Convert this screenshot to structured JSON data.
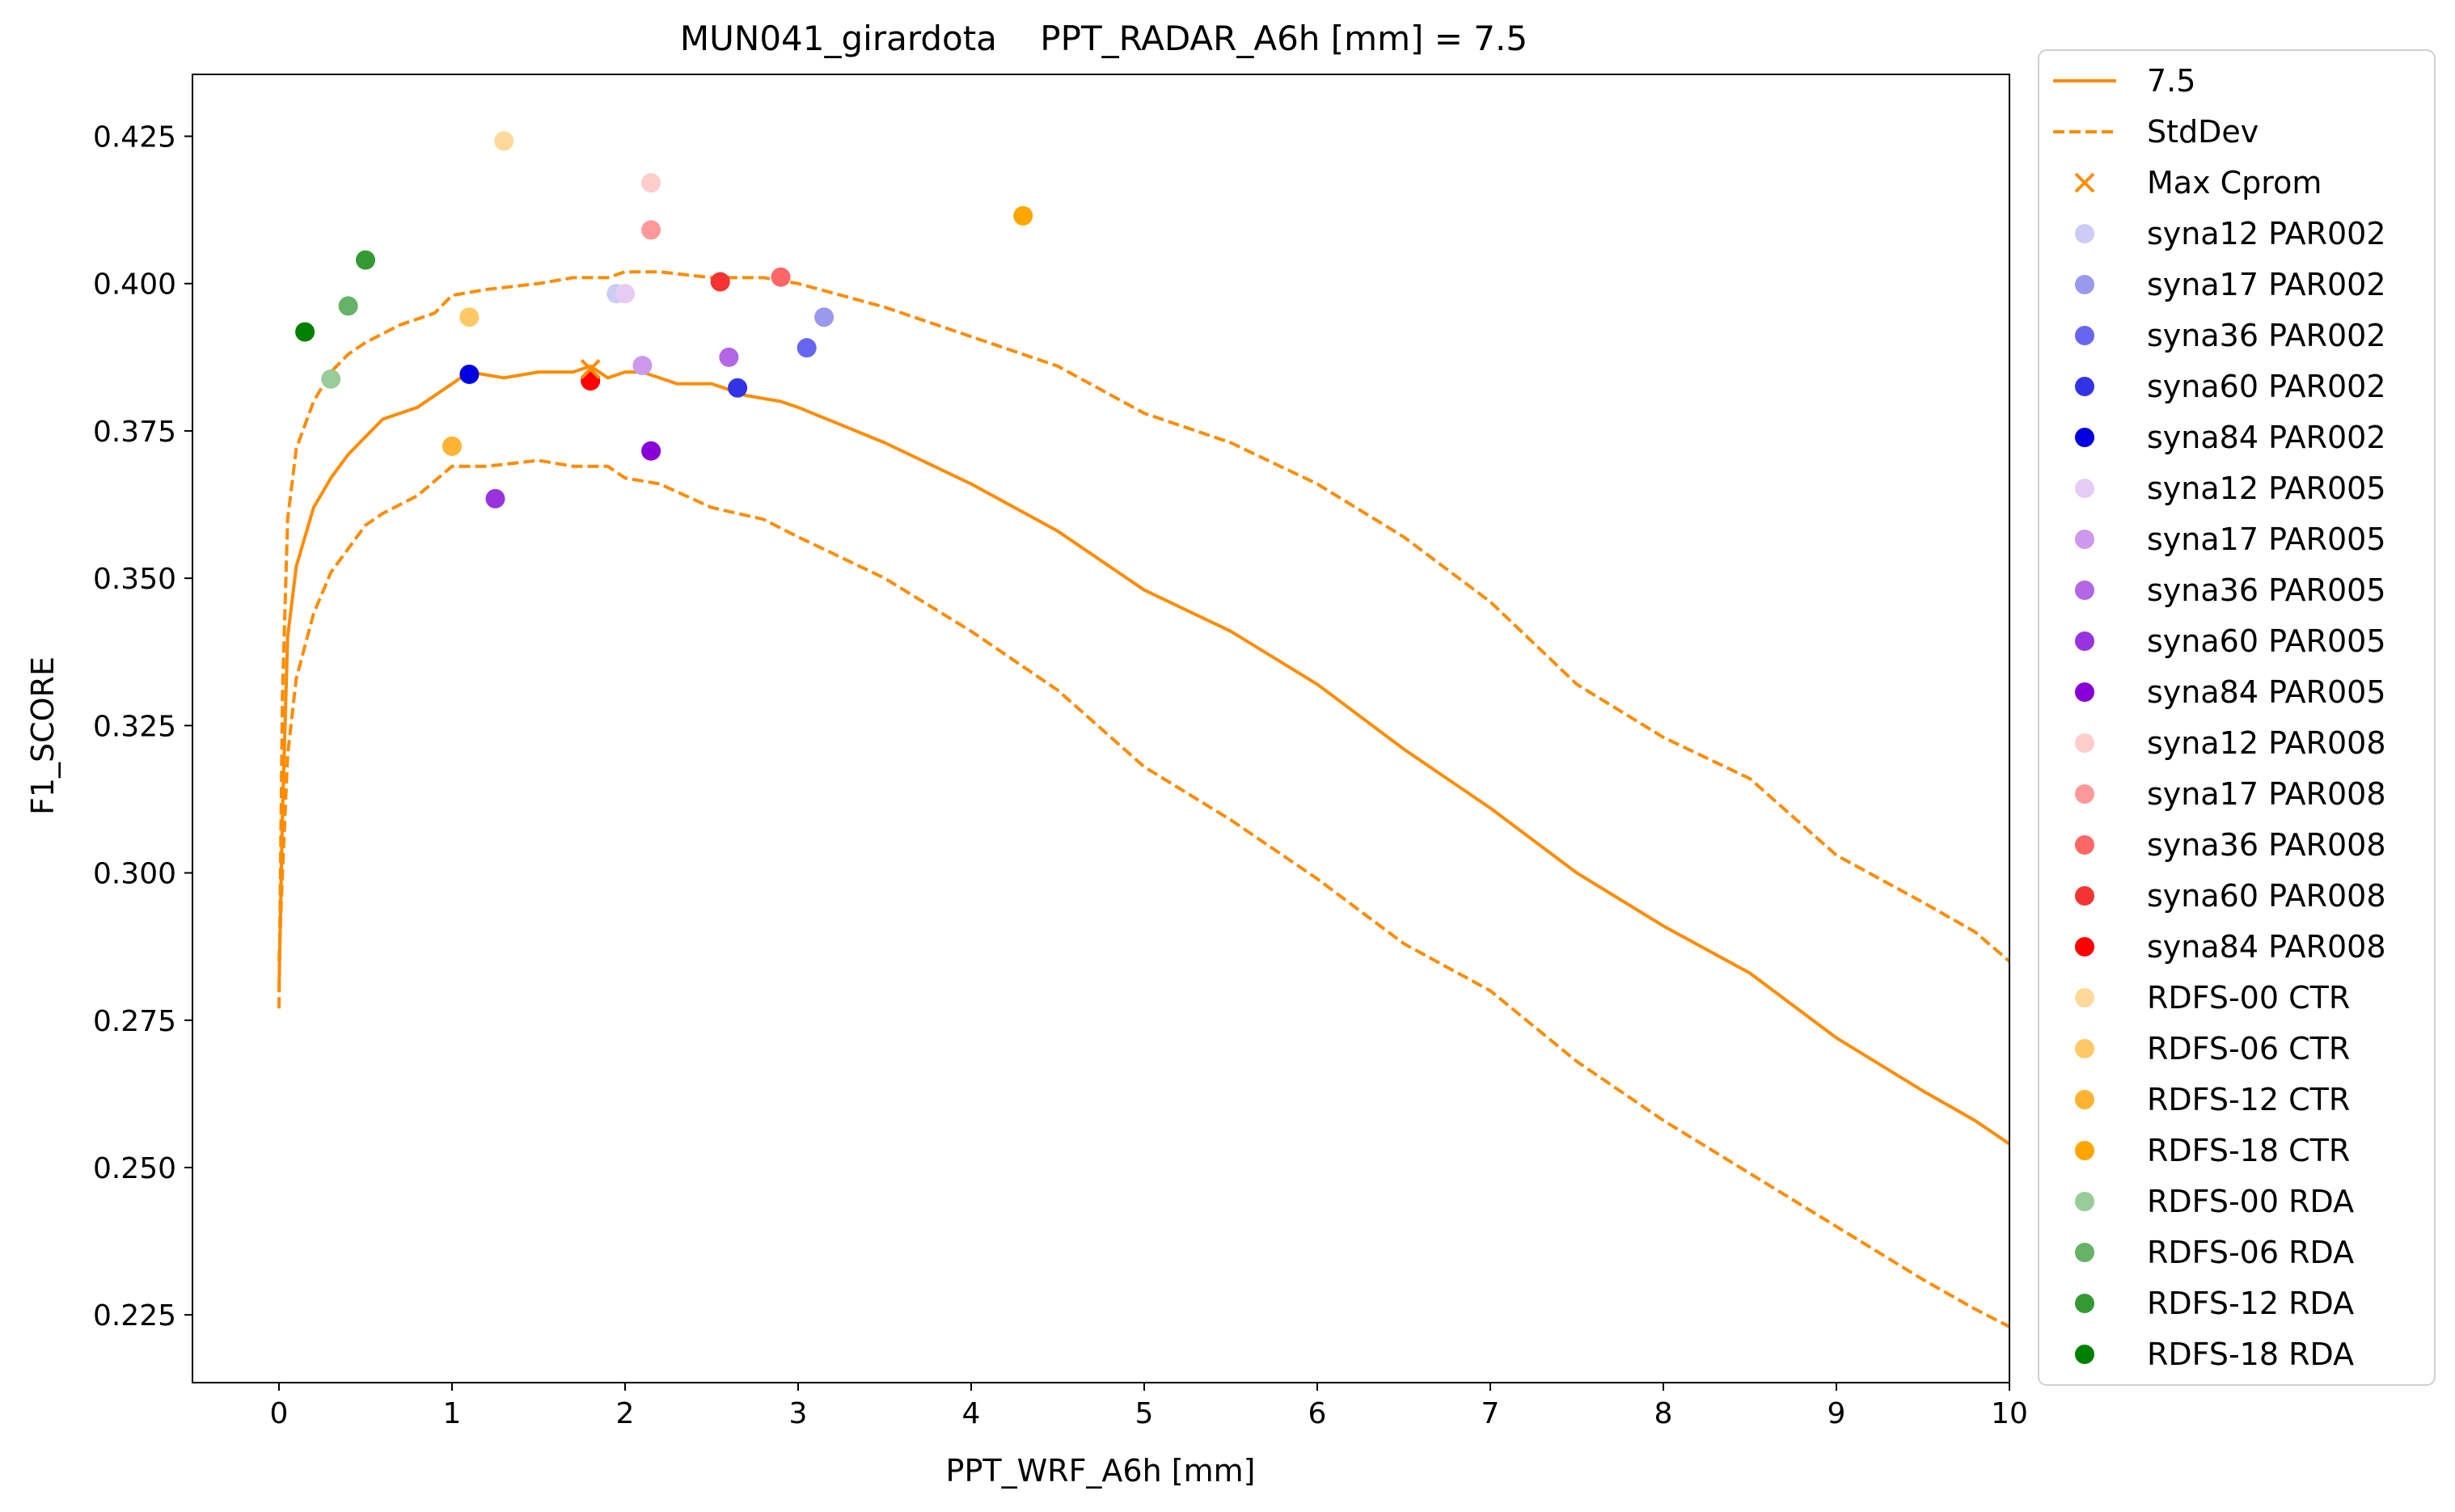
{
  "chart_data": {
    "type": "line",
    "title": "MUN041_girardota    PPT_RADAR_A6h [mm] = 7.5",
    "xlabel": "PPT_WRF_A6h [mm]",
    "ylabel": "F1_SCORE",
    "xlim": [
      -0.5,
      10
    ],
    "ylim": [
      0.2135,
      0.4355
    ],
    "xticks": [
      0,
      1,
      2,
      3,
      4,
      5,
      6,
      7,
      8,
      9,
      10
    ],
    "yticks": [
      0.225,
      0.25,
      0.275,
      0.3,
      0.325,
      0.35,
      0.375,
      0.4,
      0.425
    ],
    "ytick_labels": [
      "0.225",
      "0.250",
      "0.275",
      "0.300",
      "0.325",
      "0.350",
      "0.375",
      "0.400",
      "0.425"
    ],
    "grid": false,
    "legend_position": "outside-right",
    "series": [
      {
        "name": "7.5",
        "style": "solid",
        "color": "#ff8c00",
        "points": [
          [
            0.0,
            0.28
          ],
          [
            0.02,
            0.31
          ],
          [
            0.05,
            0.34
          ],
          [
            0.1,
            0.352
          ],
          [
            0.2,
            0.362
          ],
          [
            0.3,
            0.367
          ],
          [
            0.4,
            0.371
          ],
          [
            0.5,
            0.374
          ],
          [
            0.6,
            0.377
          ],
          [
            0.8,
            0.379
          ],
          [
            1.0,
            0.383
          ],
          [
            1.1,
            0.385
          ],
          [
            1.3,
            0.384
          ],
          [
            1.5,
            0.385
          ],
          [
            1.7,
            0.385
          ],
          [
            1.8,
            0.386
          ],
          [
            1.9,
            0.384
          ],
          [
            2.0,
            0.385
          ],
          [
            2.1,
            0.385
          ],
          [
            2.3,
            0.383
          ],
          [
            2.5,
            0.383
          ],
          [
            2.7,
            0.381
          ],
          [
            2.9,
            0.38
          ],
          [
            3.0,
            0.379
          ],
          [
            3.5,
            0.373
          ],
          [
            4.0,
            0.366
          ],
          [
            4.5,
            0.358
          ],
          [
            5.0,
            0.348
          ],
          [
            5.5,
            0.341
          ],
          [
            6.0,
            0.332
          ],
          [
            6.5,
            0.321
          ],
          [
            7.0,
            0.311
          ],
          [
            7.5,
            0.3
          ],
          [
            8.0,
            0.291
          ],
          [
            8.5,
            0.283
          ],
          [
            9.0,
            0.272
          ],
          [
            9.5,
            0.263
          ],
          [
            9.8,
            0.258
          ],
          [
            10.0,
            0.254
          ]
        ]
      },
      {
        "name": "StdDev",
        "style": "dashed",
        "color": "#ff8c00",
        "points": [
          [
            0.0,
            0.277
          ],
          [
            0.02,
            0.33
          ],
          [
            0.05,
            0.36
          ],
          [
            0.1,
            0.372
          ],
          [
            0.2,
            0.38
          ],
          [
            0.3,
            0.385
          ],
          [
            0.4,
            0.388
          ],
          [
            0.5,
            0.39
          ],
          [
            0.7,
            0.393
          ],
          [
            0.9,
            0.395
          ],
          [
            1.0,
            0.398
          ],
          [
            1.2,
            0.399
          ],
          [
            1.5,
            0.4
          ],
          [
            1.7,
            0.401
          ],
          [
            1.9,
            0.401
          ],
          [
            2.0,
            0.402
          ],
          [
            2.2,
            0.402
          ],
          [
            2.5,
            0.401
          ],
          [
            2.8,
            0.401
          ],
          [
            3.0,
            0.4
          ],
          [
            3.5,
            0.396
          ],
          [
            4.0,
            0.391
          ],
          [
            4.5,
            0.386
          ],
          [
            5.0,
            0.378
          ],
          [
            5.5,
            0.373
          ],
          [
            6.0,
            0.366
          ],
          [
            6.5,
            0.357
          ],
          [
            7.0,
            0.346
          ],
          [
            7.5,
            0.332
          ],
          [
            8.0,
            0.323
          ],
          [
            8.5,
            0.316
          ],
          [
            9.0,
            0.303
          ],
          [
            9.5,
            0.295
          ],
          [
            9.8,
            0.29
          ],
          [
            10.0,
            0.285
          ]
        ]
      },
      {
        "name": "StdDev",
        "style": "dashed",
        "color": "#ff8c00",
        "points": [
          [
            0.0,
            0.285
          ],
          [
            0.02,
            0.3
          ],
          [
            0.05,
            0.32
          ],
          [
            0.1,
            0.333
          ],
          [
            0.2,
            0.344
          ],
          [
            0.3,
            0.351
          ],
          [
            0.4,
            0.355
          ],
          [
            0.5,
            0.359
          ],
          [
            0.6,
            0.361
          ],
          [
            0.8,
            0.364
          ],
          [
            1.0,
            0.369
          ],
          [
            1.2,
            0.369
          ],
          [
            1.5,
            0.37
          ],
          [
            1.7,
            0.369
          ],
          [
            1.9,
            0.369
          ],
          [
            2.0,
            0.367
          ],
          [
            2.2,
            0.366
          ],
          [
            2.5,
            0.362
          ],
          [
            2.8,
            0.36
          ],
          [
            3.0,
            0.357
          ],
          [
            3.5,
            0.35
          ],
          [
            4.0,
            0.341
          ],
          [
            4.5,
            0.331
          ],
          [
            5.0,
            0.318
          ],
          [
            5.5,
            0.309
          ],
          [
            6.0,
            0.299
          ],
          [
            6.5,
            0.288
          ],
          [
            7.0,
            0.28
          ],
          [
            7.5,
            0.268
          ],
          [
            8.0,
            0.258
          ],
          [
            8.5,
            0.249
          ],
          [
            9.0,
            0.24
          ],
          [
            9.5,
            0.231
          ],
          [
            9.8,
            0.226
          ],
          [
            10.0,
            0.223
          ]
        ]
      }
    ],
    "max_marker": {
      "name": "Max Cprom",
      "x": 1.8,
      "y": 0.3855,
      "color": "#ff8c00"
    },
    "scatter": [
      {
        "name": "syna12 PAR002",
        "color": "#ccccf5",
        "x": 1.95,
        "y": 0.3983
      },
      {
        "name": "syna17 PAR002",
        "color": "#9999ee",
        "x": 3.15,
        "y": 0.3943
      },
      {
        "name": "syna36 PAR002",
        "color": "#6666f0",
        "x": 3.05,
        "y": 0.3891
      },
      {
        "name": "syna60 PAR002",
        "color": "#3333e6",
        "x": 2.65,
        "y": 0.3823
      },
      {
        "name": "syna84 PAR002",
        "color": "#0000e0",
        "x": 1.1,
        "y": 0.3846
      },
      {
        "name": "syna12 PAR005",
        "color": "#e6ccf5",
        "x": 2.0,
        "y": 0.3983
      },
      {
        "name": "syna17 PAR005",
        "color": "#cc99ee",
        "x": 2.1,
        "y": 0.3861
      },
      {
        "name": "syna36 PAR005",
        "color": "#b366e6",
        "x": 2.6,
        "y": 0.3875
      },
      {
        "name": "syna60 PAR005",
        "color": "#9933e0",
        "x": 1.25,
        "y": 0.3635
      },
      {
        "name": "syna84 PAR005",
        "color": "#8800d8",
        "x": 2.15,
        "y": 0.3716
      },
      {
        "name": "syna12 PAR008",
        "color": "#ffcccc",
        "x": 2.15,
        "y": 0.4171
      },
      {
        "name": "syna17 PAR008",
        "color": "#ff9999",
        "x": 2.15,
        "y": 0.4091
      },
      {
        "name": "syna36 PAR008",
        "color": "#ff6666",
        "x": 2.9,
        "y": 0.4011
      },
      {
        "name": "syna60 PAR008",
        "color": "#f53333",
        "x": 2.55,
        "y": 0.4003
      },
      {
        "name": "syna84 PAR008",
        "color": "#ff0000",
        "x": 1.8,
        "y": 0.3835
      },
      {
        "name": "RDFS-00 CTR",
        "color": "#ffd999",
        "x": 1.3,
        "y": 0.4242
      },
      {
        "name": "RDFS-06 CTR",
        "color": "#ffc966",
        "x": 1.1,
        "y": 0.3943
      },
      {
        "name": "RDFS-12 CTR",
        "color": "#ffb333",
        "x": 1.0,
        "y": 0.3724
      },
      {
        "name": "RDFS-18 CTR",
        "color": "#ffa500",
        "x": 4.3,
        "y": 0.4115
      },
      {
        "name": "RDFS-00 RDA",
        "color": "#99cc99",
        "x": 0.3,
        "y": 0.3838
      },
      {
        "name": "RDFS-06 RDA",
        "color": "#66b266",
        "x": 0.4,
        "y": 0.3962
      },
      {
        "name": "RDFS-12 RDA",
        "color": "#339933",
        "x": 0.5,
        "y": 0.404
      },
      {
        "name": "RDFS-18 RDA",
        "color": "#008000",
        "x": 0.15,
        "y": 0.3918
      }
    ],
    "legend": [
      {
        "label": "7.5",
        "kind": "line"
      },
      {
        "label": "StdDev",
        "kind": "dashed"
      },
      {
        "label": "Max Cprom",
        "kind": "x"
      },
      {
        "label": "syna12 PAR002",
        "kind": "dot",
        "color": "#ccccf5"
      },
      {
        "label": "syna17 PAR002",
        "kind": "dot",
        "color": "#9999ee"
      },
      {
        "label": "syna36 PAR002",
        "kind": "dot",
        "color": "#6666f0"
      },
      {
        "label": "syna60 PAR002",
        "kind": "dot",
        "color": "#3333e6"
      },
      {
        "label": "syna84 PAR002",
        "kind": "dot",
        "color": "#0000e0"
      },
      {
        "label": "syna12 PAR005",
        "kind": "dot",
        "color": "#e6ccf5"
      },
      {
        "label": "syna17 PAR005",
        "kind": "dot",
        "color": "#cc99ee"
      },
      {
        "label": "syna36 PAR005",
        "kind": "dot",
        "color": "#b366e6"
      },
      {
        "label": "syna60 PAR005",
        "kind": "dot",
        "color": "#9933e0"
      },
      {
        "label": "syna84 PAR005",
        "kind": "dot",
        "color": "#8800d8"
      },
      {
        "label": "syna12 PAR008",
        "kind": "dot",
        "color": "#ffcccc"
      },
      {
        "label": "syna17 PAR008",
        "kind": "dot",
        "color": "#ff9999"
      },
      {
        "label": "syna36 PAR008",
        "kind": "dot",
        "color": "#ff6666"
      },
      {
        "label": "syna60 PAR008",
        "kind": "dot",
        "color": "#f53333"
      },
      {
        "label": "syna84 PAR008",
        "kind": "dot",
        "color": "#ff0000"
      },
      {
        "label": " RDFS-00 CTR",
        "kind": "dot",
        "color": "#ffd999"
      },
      {
        "label": " RDFS-06 CTR",
        "kind": "dot",
        "color": "#ffc966"
      },
      {
        "label": " RDFS-12 CTR",
        "kind": "dot",
        "color": "#ffb333"
      },
      {
        "label": " RDFS-18 CTR",
        "kind": "dot",
        "color": "#ffa500"
      },
      {
        "label": " RDFS-00 RDA",
        "kind": "dot",
        "color": "#99cc99"
      },
      {
        "label": " RDFS-06 RDA",
        "kind": "dot",
        "color": "#66b266"
      },
      {
        "label": " RDFS-12 RDA",
        "kind": "dot",
        "color": "#339933"
      },
      {
        "label": " RDFS-18 RDA",
        "kind": "dot",
        "color": "#008000"
      }
    ]
  }
}
